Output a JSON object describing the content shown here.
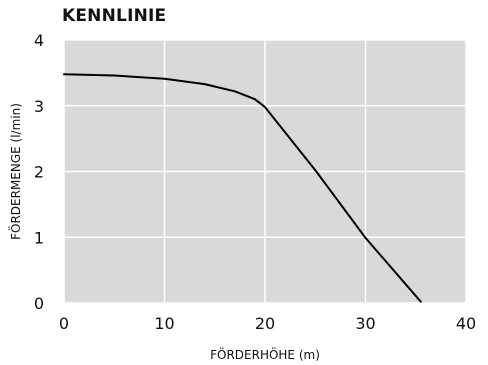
{
  "chart_data": {
    "type": "line",
    "title": "KENNLINIE",
    "xlabel": "FÖRDERHÖHE (m)",
    "ylabel": "FÖRDERMENGE (l/min)",
    "xlim": [
      0,
      40
    ],
    "ylim": [
      0,
      4
    ],
    "x_ticks": [
      "0",
      "10",
      "20",
      "30",
      "40"
    ],
    "y_ticks": [
      "0",
      "1",
      "2",
      "3",
      "4"
    ],
    "grid": true,
    "background_color": "#d9d9d9",
    "grid_color": "#ffffff",
    "line_color": "#000000",
    "series": [
      {
        "x": [
          0,
          5,
          10,
          14,
          17,
          19,
          20,
          25,
          30,
          35.5
        ],
        "y": [
          3.48,
          3.46,
          3.41,
          3.33,
          3.22,
          3.1,
          2.98,
          2.02,
          0.99,
          0.02
        ]
      }
    ]
  }
}
